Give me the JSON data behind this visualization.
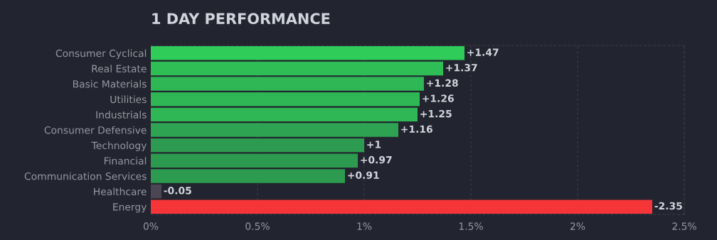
{
  "chart_data": {
    "type": "bar",
    "orientation": "horizontal",
    "title": "1 DAY PERFORMANCE",
    "categories": [
      "Consumer Cyclical",
      "Real Estate",
      "Basic Materials",
      "Utilities",
      "Industrials",
      "Consumer Defensive",
      "Technology",
      "Financial",
      "Communication Services",
      "Healthcare",
      "Energy"
    ],
    "values": [
      1.47,
      1.37,
      1.28,
      1.26,
      1.25,
      1.16,
      1.0,
      0.97,
      0.91,
      -0.05,
      -2.35
    ],
    "base": [
      0,
      0,
      0,
      0,
      0,
      0,
      0,
      0,
      0,
      0.05,
      2.35
    ],
    "value_labels": [
      "+1.47",
      "+1.37",
      "+1.28",
      "+1.26",
      "+1.25",
      "+1.16",
      "+1",
      "+0.97",
      "+0.91",
      "-0.05",
      "-2.35"
    ],
    "colors": [
      "#30cc5a",
      "#2fbd56",
      "#2fb655",
      "#2fb655",
      "#2fb655",
      "#2ea352",
      "#2d9b4f",
      "#2d9b4f",
      "#2d9b4f",
      "#4c4553",
      "#f63538"
    ],
    "xlim": [
      0,
      2.5
    ],
    "xticks": [
      {
        "value": 0,
        "label": "0%"
      },
      {
        "value": 0.5,
        "label": "0.5%"
      },
      {
        "value": 1,
        "label": "1%"
      },
      {
        "value": 1.5,
        "label": "1.5%"
      },
      {
        "value": 2,
        "label": "2%"
      },
      {
        "value": 2.5,
        "label": "2.5%"
      }
    ],
    "grid": "x"
  }
}
